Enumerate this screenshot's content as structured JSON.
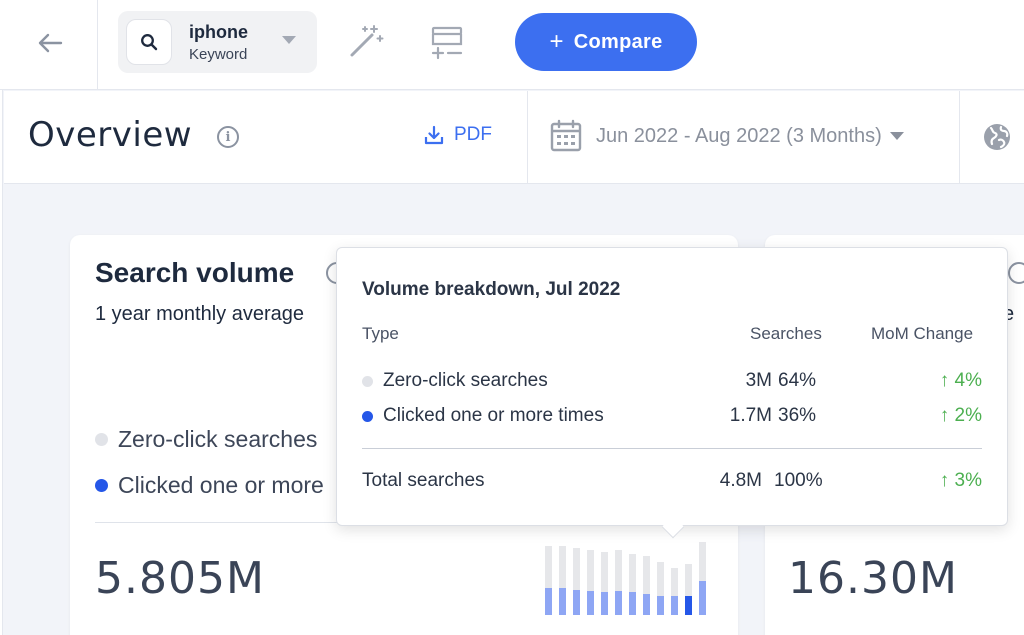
{
  "keyword": {
    "term": "iphone",
    "type": "Keyword"
  },
  "header": {
    "compare_label": "Compare",
    "compare_plus": "+"
  },
  "subbar": {
    "title": "Overview",
    "pdf_label": "PDF",
    "date_range": "Jun 2022 - Aug 2022 (3 Months)"
  },
  "card_search_volume": {
    "title": "Search volume",
    "subtitle": "1 year monthly average",
    "legend": [
      {
        "label": "Zero-click searches",
        "color": "#e1e3e8"
      },
      {
        "label": "Clicked one or more",
        "color": "#2557e8"
      }
    ],
    "value": "5.805M"
  },
  "card_second": {
    "value": "16.30M",
    "subtitle_fragment": "e"
  },
  "tooltip": {
    "title": "Volume breakdown, Jul 2022",
    "columns": {
      "type": "Type",
      "searches": "Searches",
      "mom": "MoM Change"
    },
    "rows": [
      {
        "label": "Zero-click searches",
        "searches": "3M",
        "pct": "64%",
        "mom": "↑ 4%",
        "dot_color": "#e1e3e8"
      },
      {
        "label": "Clicked one or more times",
        "searches": "1.7M",
        "pct": "36%",
        "mom": "↑ 2%",
        "dot_color": "#2557e8"
      }
    ],
    "total": {
      "label": "Total searches",
      "searches": "4.8M",
      "pct": "100%",
      "mom": "↑ 3%"
    }
  },
  "colors": {
    "accent": "#3c6ff0",
    "positive": "#4caf50",
    "zero_click": "#e1e3e8",
    "clicked": "#2557e8"
  }
}
